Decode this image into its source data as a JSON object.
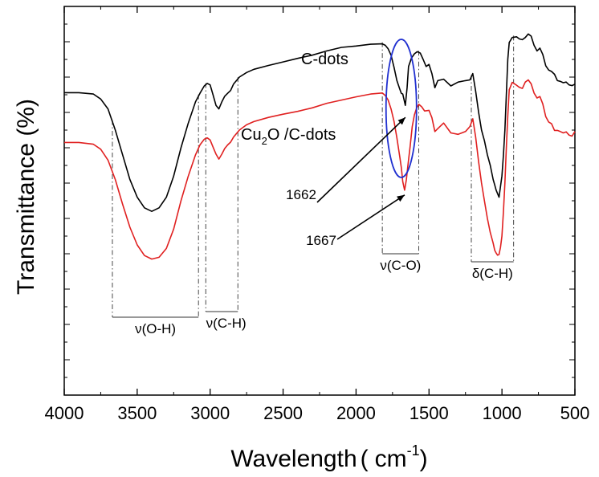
{
  "chart_data": {
    "type": "line",
    "title": "",
    "xlabel": "Wavelength",
    "xlabel_open": "(",
    "xlabel_unit": "cm",
    "xlabel_exp": "-1",
    "xlabel_close": ")",
    "ylabel": "Transmittance (%)",
    "xlim": [
      4000,
      500
    ],
    "x_reversed": true,
    "y_tick_labels_shown": false,
    "grid": false,
    "legend": "none",
    "x_ticks": [
      {
        "value": 4000,
        "label": "4000"
      },
      {
        "value": 3500,
        "label": "3500"
      },
      {
        "value": 3000,
        "label": "3000"
      },
      {
        "value": 2500,
        "label": "2500"
      },
      {
        "value": 2000,
        "label": "2000"
      },
      {
        "value": 1500,
        "label": "1500"
      },
      {
        "value": 1000,
        "label": "1000"
      },
      {
        "value": 500,
        "label": "500"
      }
    ],
    "series": [
      {
        "name": "C-dots",
        "color": "#000000",
        "x": [
          4000,
          3900,
          3800,
          3750,
          3700,
          3650,
          3600,
          3550,
          3500,
          3450,
          3400,
          3350,
          3300,
          3250,
          3200,
          3150,
          3100,
          3070,
          3040,
          3020,
          3000,
          2980,
          2960,
          2940,
          2920,
          2900,
          2880,
          2860,
          2840,
          2800,
          2750,
          2700,
          2600,
          2500,
          2400,
          2300,
          2200,
          2100,
          2000,
          1900,
          1820,
          1800,
          1780,
          1760,
          1740,
          1720,
          1700,
          1690,
          1680,
          1662,
          1650,
          1640,
          1620,
          1600,
          1580,
          1560,
          1540,
          1520,
          1500,
          1480,
          1460,
          1440,
          1400,
          1350,
          1300,
          1250,
          1220,
          1200,
          1180,
          1160,
          1140,
          1120,
          1100,
          1080,
          1060,
          1050,
          1040,
          1030,
          1020,
          1010,
          1000,
          990,
          980,
          970,
          960,
          950,
          930,
          900,
          880,
          860,
          840,
          820,
          800,
          780,
          760,
          740,
          720,
          700,
          680,
          660,
          640,
          620,
          600,
          580,
          560,
          540,
          520,
          500
        ],
        "y": [
          85.6,
          85.6,
          85.2,
          83.8,
          81,
          75,
          68,
          61,
          56,
          53,
          52,
          53,
          56,
          62,
          70,
          77,
          83,
          85.4,
          87.5,
          88.2,
          87.8,
          85,
          82,
          81,
          83,
          84.6,
          85.4,
          86.2,
          88,
          90,
          91.3,
          92.2,
          93.3,
          94.3,
          95.3,
          96.2,
          97.4,
          98.4,
          98.8,
          99.3,
          99.4,
          99,
          98,
          96.2,
          92.8,
          89,
          86.6,
          85.4,
          85.2,
          82,
          87,
          93,
          95.4,
          96.6,
          97.2,
          96.8,
          95,
          93,
          93.6,
          91,
          87,
          89,
          89.4,
          87.5,
          88.6,
          89,
          89.2,
          91,
          86,
          80,
          75,
          72,
          68,
          65,
          61,
          59.5,
          58,
          57,
          56,
          59,
          62,
          68,
          75,
          85,
          95,
          99.8,
          101.2,
          101.4,
          100.8,
          100.6,
          101.2,
          102.2,
          101.6,
          99,
          97.4,
          98.2,
          96.4,
          93.2,
          92,
          91.6,
          90.8,
          89,
          88.8,
          88.4,
          88.6,
          87.8,
          87.6,
          88
        ]
      },
      {
        "name": "Cu2O /C-dots",
        "color": "#e02020",
        "x": [
          4000,
          3900,
          3800,
          3750,
          3700,
          3650,
          3600,
          3550,
          3500,
          3450,
          3400,
          3350,
          3300,
          3250,
          3200,
          3150,
          3100,
          3070,
          3040,
          3020,
          3000,
          2980,
          2960,
          2940,
          2920,
          2900,
          2880,
          2860,
          2840,
          2800,
          2750,
          2700,
          2600,
          2500,
          2400,
          2300,
          2200,
          2100,
          2000,
          1900,
          1820,
          1800,
          1780,
          1760,
          1740,
          1720,
          1700,
          1690,
          1680,
          1667,
          1655,
          1645,
          1630,
          1615,
          1600,
          1585,
          1570,
          1550,
          1530,
          1500,
          1480,
          1460,
          1440,
          1400,
          1350,
          1300,
          1250,
          1220,
          1200,
          1180,
          1160,
          1140,
          1120,
          1100,
          1080,
          1060,
          1050,
          1040,
          1030,
          1020,
          1010,
          1000,
          990,
          980,
          970,
          960,
          950,
          930,
          900,
          880,
          860,
          840,
          820,
          800,
          780,
          760,
          740,
          720,
          700,
          680,
          660,
          640,
          620,
          600,
          580,
          560,
          540,
          520,
          500
        ],
        "y": [
          71.5,
          71.5,
          71,
          69.6,
          66.5,
          61,
          54,
          47.5,
          42.5,
          39.5,
          38.5,
          39,
          41.5,
          47,
          55,
          62,
          68,
          70.8,
          72.4,
          72.8,
          72.2,
          70.2,
          68.2,
          66.8,
          68.2,
          69.8,
          70.8,
          71.6,
          73,
          75,
          76.5,
          77.4,
          78.6,
          79.5,
          80.3,
          81.3,
          82.6,
          83.5,
          84.4,
          85.2,
          85.5,
          84.8,
          83.5,
          81,
          77.5,
          72.8,
          67.4,
          64.4,
          60.4,
          58,
          61,
          64.8,
          70.2,
          76,
          79.3,
          81.2,
          82.3,
          81.6,
          80.4,
          80.6,
          78.5,
          74.6,
          75.4,
          77,
          74.2,
          73.8,
          74.6,
          76,
          78.2,
          73,
          66,
          60,
          55,
          50,
          46,
          43,
          41,
          40.2,
          39.6,
          39.8,
          41.8,
          45,
          52,
          60,
          70,
          79,
          86.4,
          88.5,
          87.7,
          87.1,
          86.8,
          88.6,
          89.2,
          88.1,
          85.5,
          84.1,
          84.5,
          82.4,
          78.8,
          77.3,
          76.8,
          74.9,
          74.9,
          74.6,
          74.2,
          74.5,
          73.6,
          73.3,
          74.6
        ]
      }
    ],
    "ylim": [
      0,
      110
    ],
    "annotations": {
      "series_label_black": "C-dots",
      "series_label_red_main": "Cu",
      "series_label_red_sub": "2",
      "series_label_red_rest": "O  /C-dots",
      "peak_black": {
        "label": "1662",
        "x": 1662
      },
      "peak_red": {
        "label": "1667",
        "x": 1667
      },
      "bands": [
        {
          "label": "ν(O-H)",
          "from": 3670,
          "to": 3080,
          "label_x": 3375
        },
        {
          "label": "ν(C-H)",
          "from": 3030,
          "to": 2810,
          "label_x": 2890
        },
        {
          "label": "ν(C-O)",
          "from": 1820,
          "to": 1570,
          "label_x": 1695
        },
        {
          "label": "δ(C-H)",
          "from": 1210,
          "to": 920,
          "label_x": 1065
        }
      ],
      "ellipse_color": "#2030d0"
    }
  }
}
